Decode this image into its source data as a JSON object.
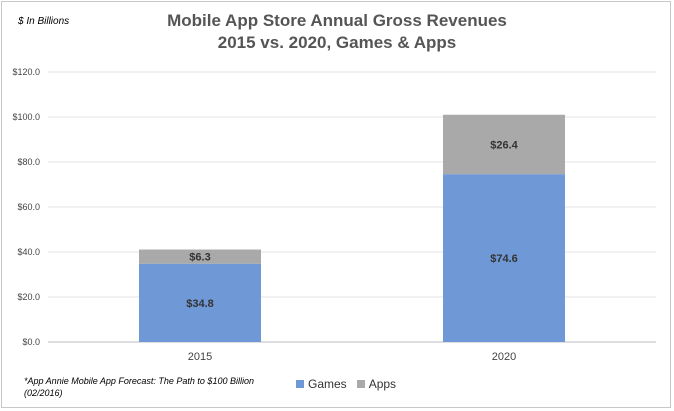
{
  "chart_data": {
    "type": "bar",
    "stacked": true,
    "title": [
      "Mobile App Store Annual Gross Revenues",
      "2015 vs. 2020, Games & Apps"
    ],
    "unit_label": "$ In Billions",
    "categories": [
      "2015",
      "2020"
    ],
    "series": [
      {
        "name": "Games",
        "values": [
          34.8,
          74.6
        ],
        "labels": [
          "$34.8",
          "$74.6"
        ],
        "color": "#6f98d6"
      },
      {
        "name": "Apps",
        "values": [
          6.3,
          26.4
        ],
        "labels": [
          "$6.3",
          "$26.4"
        ],
        "color": "#a9a9a9"
      }
    ],
    "ylim": [
      0,
      120
    ],
    "yticks": [
      0,
      20,
      40,
      60,
      80,
      100,
      120
    ],
    "ytick_labels": [
      "$0.0",
      "$20.0",
      "$40.0",
      "$60.0",
      "$80.0",
      "$100.0",
      "$120.0"
    ],
    "grid": true,
    "legend": "bottom-center",
    "footnote": "*App Annie Mobile App Forecast: The Path to $100 Billion (02/2016)"
  }
}
